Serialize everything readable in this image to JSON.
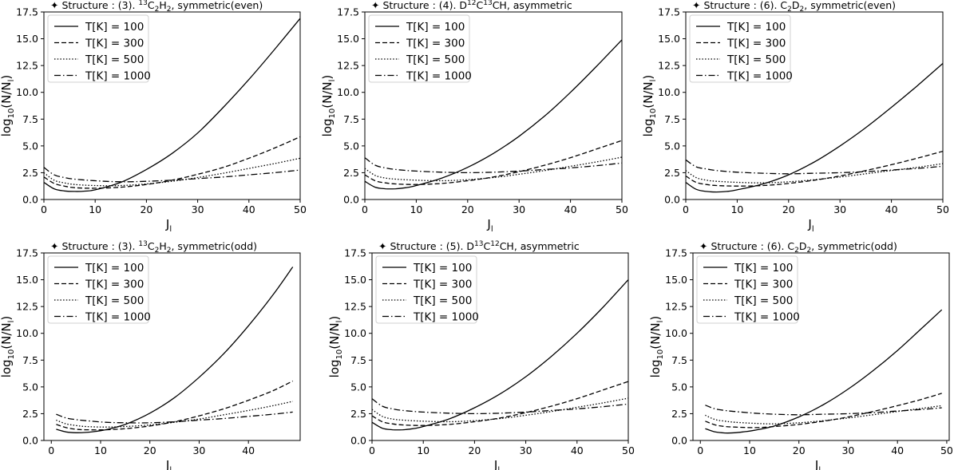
{
  "colors": {
    "line": "#000000",
    "background": "#ffffff"
  },
  "chart_data": [
    {
      "type": "line",
      "title": {
        "prefix": "✦ Structure : (3). ",
        "sup1": "13",
        "main1": "C",
        "sub1": "2",
        "main2": "H",
        "sub2": "2",
        "suffix": ", symmetric(even)"
      },
      "xlabel": "J",
      "xlabel_sub": "l",
      "ylabel": "log",
      "ylabel_sub": "10",
      "ylabel_rest": "(N/N",
      "ylabel_sub2": "l",
      "ylabel_end": ")",
      "xlim": [
        0,
        50
      ],
      "ylim": [
        0,
        17.5
      ],
      "xticks": [
        "0",
        "10",
        "20",
        "30",
        "40",
        "50"
      ],
      "yticks": [
        "0.0",
        "2.5",
        "5.0",
        "7.5",
        "10.0",
        "12.5",
        "15.0",
        "17.5"
      ],
      "legend_position": "top-left",
      "series": [
        {
          "name": "T[K] = 100",
          "style": "solid",
          "x": [
            0,
            2,
            4,
            6,
            8,
            10,
            15,
            20,
            25,
            30,
            35,
            40,
            45,
            50
          ],
          "values": [
            1.6,
            1.0,
            0.8,
            0.75,
            0.78,
            0.9,
            1.6,
            2.8,
            4.3,
            6.2,
            8.6,
            11.2,
            14.0,
            16.9
          ]
        },
        {
          "name": "T[K] = 300",
          "style": "dashed",
          "x": [
            0,
            2,
            4,
            6,
            10,
            15,
            20,
            25,
            30,
            35,
            40,
            45,
            50
          ],
          "values": [
            2.1,
            1.5,
            1.25,
            1.1,
            1.05,
            1.15,
            1.4,
            1.8,
            2.35,
            3.0,
            3.85,
            4.8,
            5.85
          ]
        },
        {
          "name": "T[K] = 500",
          "style": "dotted",
          "x": [
            0,
            2,
            4,
            6,
            10,
            15,
            20,
            25,
            30,
            35,
            40,
            45,
            50
          ],
          "values": [
            2.5,
            1.8,
            1.55,
            1.4,
            1.3,
            1.3,
            1.45,
            1.7,
            2.05,
            2.45,
            2.9,
            3.35,
            3.85
          ]
        },
        {
          "name": "T[K] = 1000",
          "style": "dashdot",
          "x": [
            0,
            2,
            4,
            6,
            10,
            15,
            20,
            25,
            30,
            35,
            40,
            45,
            50
          ],
          "values": [
            3.0,
            2.3,
            2.05,
            1.9,
            1.75,
            1.65,
            1.7,
            1.8,
            1.95,
            2.1,
            2.3,
            2.5,
            2.75
          ]
        }
      ]
    },
    {
      "type": "line",
      "title": {
        "prefix": "✦ Structure : (4). D",
        "sup1": "12",
        "main1": "C",
        "sup2": "13",
        "main2": "CH",
        "suffix": ", asymmetric"
      },
      "xlabel": "J",
      "xlabel_sub": "l",
      "ylabel": "log",
      "ylabel_sub": "10",
      "ylabel_rest": "(N/N",
      "ylabel_sub2": "l",
      "ylabel_end": ")",
      "xlim": [
        0,
        50
      ],
      "ylim": [
        0,
        17.5
      ],
      "xticks": [
        "0",
        "10",
        "20",
        "30",
        "40",
        "50"
      ],
      "yticks": [
        "0.0",
        "2.5",
        "5.0",
        "7.5",
        "10.0",
        "12.5",
        "15.0",
        "17.5"
      ],
      "legend_position": "top-left",
      "series": [
        {
          "name": "T[K] = 100",
          "style": "solid",
          "x": [
            0,
            2,
            4,
            6,
            8,
            10,
            15,
            20,
            25,
            30,
            35,
            40,
            45,
            50
          ],
          "values": [
            1.7,
            1.15,
            1.0,
            1.0,
            1.1,
            1.3,
            2.0,
            3.0,
            4.3,
            5.9,
            7.8,
            10.0,
            12.4,
            14.9
          ]
        },
        {
          "name": "T[K] = 300",
          "style": "dashed",
          "x": [
            0,
            2,
            4,
            6,
            10,
            15,
            20,
            25,
            30,
            35,
            40,
            45,
            50
          ],
          "values": [
            2.3,
            1.75,
            1.55,
            1.45,
            1.4,
            1.5,
            1.75,
            2.1,
            2.6,
            3.2,
            3.9,
            4.7,
            5.5
          ]
        },
        {
          "name": "T[K] = 500",
          "style": "dotted",
          "x": [
            0,
            2,
            4,
            6,
            10,
            15,
            20,
            25,
            30,
            35,
            40,
            45,
            50
          ],
          "values": [
            2.9,
            2.25,
            2.0,
            1.9,
            1.8,
            1.75,
            1.85,
            2.05,
            2.35,
            2.7,
            3.1,
            3.5,
            3.95
          ]
        },
        {
          "name": "T[K] = 1000",
          "style": "dashdot",
          "x": [
            0,
            2,
            4,
            6,
            10,
            15,
            20,
            25,
            30,
            35,
            40,
            45,
            50
          ],
          "values": [
            3.9,
            3.2,
            2.95,
            2.8,
            2.65,
            2.55,
            2.5,
            2.55,
            2.65,
            2.8,
            2.95,
            3.15,
            3.4
          ]
        }
      ]
    },
    {
      "type": "line",
      "title": {
        "prefix": "✦ Structure : (6). ",
        "main1": "C",
        "sub1": "2",
        "main2": "D",
        "sub2": "2",
        "suffix": ", symmetric(even)"
      },
      "xlabel": "J",
      "xlabel_sub": "l",
      "ylabel": "log",
      "ylabel_sub": "10",
      "ylabel_rest": "(N/N",
      "ylabel_sub2": "l",
      "ylabel_end": ")",
      "xlim": [
        0,
        50
      ],
      "ylim": [
        0,
        17.5
      ],
      "xticks": [
        "0",
        "10",
        "20",
        "30",
        "40",
        "50"
      ],
      "yticks": [
        "0.0",
        "2.5",
        "5.0",
        "7.5",
        "10.0",
        "12.5",
        "15.0",
        "17.5"
      ],
      "legend_position": "top-left",
      "series": [
        {
          "name": "T[K] = 100",
          "style": "solid",
          "x": [
            0,
            2,
            4,
            6,
            8,
            10,
            15,
            20,
            25,
            30,
            35,
            40,
            45,
            50
          ],
          "values": [
            1.6,
            0.95,
            0.75,
            0.7,
            0.75,
            0.9,
            1.45,
            2.3,
            3.5,
            5.0,
            6.7,
            8.6,
            10.6,
            12.7
          ]
        },
        {
          "name": "T[K] = 300",
          "style": "dashed",
          "x": [
            0,
            2,
            4,
            6,
            10,
            15,
            20,
            25,
            30,
            35,
            40,
            45,
            50
          ],
          "values": [
            2.2,
            1.6,
            1.4,
            1.3,
            1.25,
            1.3,
            1.5,
            1.8,
            2.2,
            2.7,
            3.25,
            3.85,
            4.5
          ]
        },
        {
          "name": "T[K] = 500",
          "style": "dotted",
          "x": [
            0,
            2,
            4,
            6,
            10,
            15,
            20,
            25,
            30,
            35,
            40,
            45,
            50
          ],
          "values": [
            2.7,
            2.05,
            1.8,
            1.7,
            1.6,
            1.55,
            1.65,
            1.85,
            2.1,
            2.4,
            2.7,
            3.0,
            3.35
          ]
        },
        {
          "name": "T[K] = 1000",
          "style": "dashdot",
          "x": [
            0,
            2,
            4,
            6,
            10,
            15,
            20,
            25,
            30,
            35,
            40,
            45,
            50
          ],
          "values": [
            3.7,
            3.05,
            2.85,
            2.7,
            2.55,
            2.45,
            2.4,
            2.45,
            2.5,
            2.6,
            2.75,
            2.9,
            3.1
          ]
        }
      ]
    },
    {
      "type": "line",
      "title": {
        "prefix": "✦ Structure : (3). ",
        "sup1": "13",
        "main1": "C",
        "sub1": "2",
        "main2": "H",
        "sub2": "2",
        "suffix": ", symmetric(odd)"
      },
      "xlabel": "J",
      "xlabel_sub": "l",
      "ylabel": "log",
      "ylabel_sub": "10",
      "ylabel_rest": "(N/N",
      "ylabel_sub2": "l",
      "ylabel_end": ")",
      "xlim": [
        -1.5,
        50.5
      ],
      "ylim": [
        0,
        17.5
      ],
      "xticks": [
        "0",
        "10",
        "20",
        "30",
        "40"
      ],
      "yticks": [
        "0.0",
        "2.5",
        "5.0",
        "7.5",
        "10.0",
        "12.5",
        "15.0",
        "17.5"
      ],
      "legend_position": "top-left",
      "series": [
        {
          "name": "T[K] = 100",
          "style": "solid",
          "x": [
            1,
            3,
            5,
            7,
            9,
            11,
            15,
            20,
            25,
            30,
            35,
            40,
            45,
            49
          ],
          "values": [
            1.05,
            0.8,
            0.72,
            0.75,
            0.85,
            1.0,
            1.5,
            2.55,
            4.0,
            5.9,
            8.1,
            10.7,
            13.6,
            16.2
          ]
        },
        {
          "name": "T[K] = 300",
          "style": "dashed",
          "x": [
            1,
            3,
            5,
            7,
            11,
            15,
            20,
            25,
            30,
            35,
            40,
            45,
            49
          ],
          "values": [
            1.5,
            1.2,
            1.05,
            1.0,
            1.0,
            1.1,
            1.35,
            1.75,
            2.3,
            2.95,
            3.75,
            4.65,
            5.55
          ]
        },
        {
          "name": "T[K] = 500",
          "style": "dotted",
          "x": [
            1,
            3,
            5,
            7,
            11,
            15,
            20,
            25,
            30,
            35,
            40,
            45,
            49
          ],
          "values": [
            1.9,
            1.55,
            1.4,
            1.3,
            1.25,
            1.3,
            1.45,
            1.7,
            2.0,
            2.4,
            2.8,
            3.25,
            3.65
          ]
        },
        {
          "name": "T[K] = 1000",
          "style": "dashdot",
          "x": [
            1,
            3,
            5,
            7,
            11,
            15,
            20,
            25,
            30,
            35,
            40,
            45,
            49
          ],
          "values": [
            2.45,
            2.1,
            1.95,
            1.85,
            1.7,
            1.65,
            1.65,
            1.75,
            1.9,
            2.05,
            2.25,
            2.45,
            2.65
          ]
        }
      ]
    },
    {
      "type": "line",
      "title": {
        "prefix": "✦ Structure : (5). D",
        "sup1": "13",
        "main1": "C",
        "sup2": "12",
        "main2": "CH",
        "suffix": ", asymmetric"
      },
      "xlabel": "J",
      "xlabel_sub": "l",
      "ylabel": "log",
      "ylabel_sub": "10",
      "ylabel_rest": "(N/N",
      "ylabel_sub2": "l",
      "ylabel_end": ")",
      "xlim": [
        0,
        50
      ],
      "ylim": [
        0,
        17.5
      ],
      "xticks": [
        "0",
        "10",
        "20",
        "30",
        "40",
        "50"
      ],
      "yticks": [
        "0.0",
        "2.5",
        "5.0",
        "7.5",
        "10.0",
        "12.5",
        "15.0",
        "17.5"
      ],
      "legend_position": "top-left",
      "series": [
        {
          "name": "T[K] = 100",
          "style": "solid",
          "x": [
            0,
            2,
            4,
            6,
            8,
            10,
            15,
            20,
            25,
            30,
            35,
            40,
            45,
            50
          ],
          "values": [
            1.7,
            1.15,
            1.0,
            1.0,
            1.1,
            1.3,
            2.0,
            3.05,
            4.35,
            5.95,
            7.85,
            10.0,
            12.4,
            15.0
          ]
        },
        {
          "name": "T[K] = 300",
          "style": "dashed",
          "x": [
            0,
            2,
            4,
            6,
            10,
            15,
            20,
            25,
            30,
            35,
            40,
            45,
            50
          ],
          "values": [
            2.3,
            1.75,
            1.55,
            1.45,
            1.4,
            1.5,
            1.75,
            2.1,
            2.6,
            3.2,
            3.9,
            4.7,
            5.5
          ]
        },
        {
          "name": "T[K] = 500",
          "style": "dotted",
          "x": [
            0,
            2,
            4,
            6,
            10,
            15,
            20,
            25,
            30,
            35,
            40,
            45,
            50
          ],
          "values": [
            2.9,
            2.25,
            2.0,
            1.9,
            1.8,
            1.75,
            1.85,
            2.05,
            2.35,
            2.7,
            3.1,
            3.5,
            3.95
          ]
        },
        {
          "name": "T[K] = 1000",
          "style": "dashdot",
          "x": [
            0,
            2,
            4,
            6,
            10,
            15,
            20,
            25,
            30,
            35,
            40,
            45,
            50
          ],
          "values": [
            3.9,
            3.2,
            2.95,
            2.8,
            2.65,
            2.55,
            2.5,
            2.55,
            2.65,
            2.8,
            2.95,
            3.15,
            3.4
          ]
        }
      ]
    },
    {
      "type": "line",
      "title": {
        "prefix": "✦ Structure : (6). ",
        "main1": "C",
        "sub1": "2",
        "main2": "D",
        "sub2": "2",
        "suffix": ", symmetric(odd)"
      },
      "xlabel": "J",
      "xlabel_sub": "l",
      "ylabel": "log",
      "ylabel_sub": "10",
      "ylabel_rest": "(N/N",
      "ylabel_sub2": "l",
      "ylabel_end": ")",
      "xlim": [
        -1.5,
        50.5
      ],
      "ylim": [
        0,
        17.5
      ],
      "xticks": [
        "0",
        "10",
        "20",
        "30",
        "40",
        "50"
      ],
      "yticks": [
        "0.0",
        "2.5",
        "5.0",
        "7.5",
        "10.0",
        "12.5",
        "15.0",
        "17.5"
      ],
      "legend_position": "top-left",
      "series": [
        {
          "name": "T[K] = 100",
          "style": "solid",
          "x": [
            1,
            3,
            5,
            7,
            9,
            11,
            15,
            20,
            25,
            30,
            35,
            40,
            45,
            49
          ],
          "values": [
            1.1,
            0.8,
            0.7,
            0.72,
            0.82,
            0.95,
            1.35,
            2.2,
            3.35,
            4.8,
            6.5,
            8.4,
            10.5,
            12.2
          ]
        },
        {
          "name": "T[K] = 300",
          "style": "dashed",
          "x": [
            1,
            3,
            5,
            7,
            11,
            15,
            20,
            25,
            30,
            35,
            40,
            45,
            49
          ],
          "values": [
            1.8,
            1.45,
            1.3,
            1.25,
            1.2,
            1.3,
            1.5,
            1.8,
            2.2,
            2.7,
            3.25,
            3.85,
            4.4
          ]
        },
        {
          "name": "T[K] = 500",
          "style": "dotted",
          "x": [
            1,
            3,
            5,
            7,
            11,
            15,
            20,
            25,
            30,
            35,
            40,
            45,
            49
          ],
          "values": [
            2.35,
            1.95,
            1.8,
            1.7,
            1.6,
            1.55,
            1.65,
            1.85,
            2.1,
            2.4,
            2.7,
            3.0,
            3.25
          ]
        },
        {
          "name": "T[K] = 1000",
          "style": "dashdot",
          "x": [
            1,
            3,
            5,
            7,
            11,
            15,
            20,
            25,
            30,
            35,
            40,
            45,
            49
          ],
          "values": [
            3.3,
            2.95,
            2.8,
            2.7,
            2.55,
            2.45,
            2.4,
            2.45,
            2.5,
            2.6,
            2.75,
            2.9,
            3.05
          ]
        }
      ]
    }
  ]
}
